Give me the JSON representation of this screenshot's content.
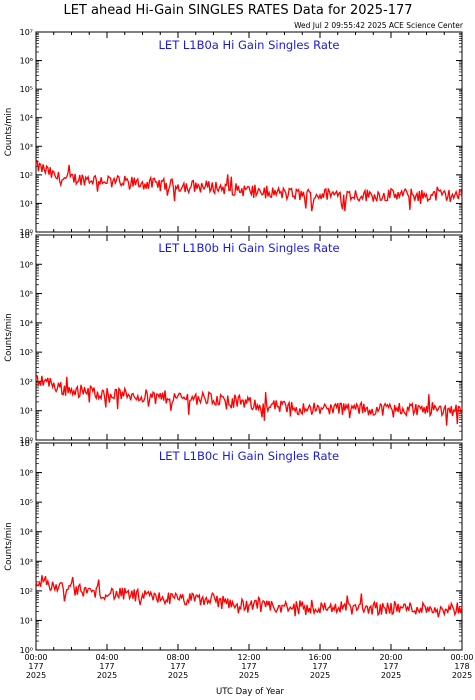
{
  "page": {
    "title": "LET ahead Hi-Gain SINGLES RATES Data for 2025-177",
    "timestamp": "Wed Jul  2 09:55:42 2025 ACE Science Center",
    "xlabel": "UTC Day of Year",
    "ylabel": "Counts/min",
    "series_color": "#ff0000",
    "label_color": "#1a1adc"
  },
  "chart_data": [
    {
      "type": "line",
      "title": "LET L1B0a Hi Gain Singles Rate",
      "ylabel": "Counts/min",
      "y_scale": "log",
      "ylim": [
        1,
        10000000
      ],
      "xlim": [
        0,
        24
      ],
      "x_unit": "hours UTC, day 177 of 2025",
      "y_tick_labels": [
        "10⁰",
        "10¹",
        "10²",
        "10³",
        "10⁴",
        "10⁵",
        "10⁶",
        "10⁷"
      ],
      "series": [
        {
          "x": [
            0,
            0.5,
            1,
            1.5,
            2,
            3,
            4,
            5,
            6,
            7,
            8,
            9,
            10,
            11,
            12,
            13,
            14,
            15,
            16,
            17,
            18,
            19,
            20,
            21,
            22,
            23,
            24
          ],
          "values": [
            200,
            150,
            90,
            70,
            75,
            70,
            65,
            55,
            50,
            45,
            42,
            40,
            38,
            32,
            28,
            25,
            22,
            20,
            20,
            21,
            20,
            19,
            20,
            20,
            19,
            19,
            19
          ]
        }
      ]
    },
    {
      "type": "line",
      "title": "LET L1B0b Hi Gain Singles Rate",
      "ylabel": "Counts/min",
      "y_scale": "log",
      "ylim": [
        1,
        10000000
      ],
      "xlim": [
        0,
        24
      ],
      "x_unit": "hours UTC, day 177 of 2025",
      "y_tick_labels": [
        "10⁰",
        "10¹",
        "10²",
        "10³",
        "10⁴",
        "10⁵",
        "10⁶",
        "10⁷"
      ],
      "series": [
        {
          "x": [
            0,
            0.5,
            1,
            1.5,
            2,
            3,
            4,
            5,
            6,
            7,
            8,
            9,
            10,
            11,
            12,
            13,
            14,
            15,
            16,
            17,
            18,
            19,
            20,
            21,
            22,
            23,
            24
          ],
          "values": [
            120,
            110,
            75,
            55,
            50,
            45,
            40,
            35,
            32,
            30,
            28,
            27,
            25,
            22,
            18,
            15,
            13,
            12,
            12,
            12,
            12,
            11,
            12,
            12,
            11,
            11,
            11
          ]
        }
      ]
    },
    {
      "type": "line",
      "title": "LET L1B0c Hi Gain Singles Rate",
      "ylabel": "Counts/min",
      "y_scale": "log",
      "ylim": [
        1,
        10000000
      ],
      "xlim": [
        0,
        24
      ],
      "x_unit": "hours UTC, day 177 of 2025",
      "y_tick_labels": [
        "10⁰",
        "10¹",
        "10²",
        "10³",
        "10⁴",
        "10⁵",
        "10⁶",
        "10⁷"
      ],
      "series": [
        {
          "x": [
            0,
            0.5,
            1,
            1.5,
            2,
            3,
            4,
            5,
            6,
            7,
            8,
            9,
            10,
            11,
            12,
            13,
            14,
            15,
            16,
            17,
            18,
            19,
            20,
            21,
            22,
            23,
            24
          ],
          "values": [
            230,
            200,
            150,
            120,
            110,
            95,
            85,
            75,
            65,
            58,
            52,
            50,
            48,
            40,
            30,
            28,
            27,
            27,
            27,
            27,
            26,
            26,
            27,
            26,
            26,
            26,
            25
          ]
        }
      ]
    }
  ],
  "x_ticks": [
    {
      "time": "00:00",
      "day": "177",
      "year": "2025"
    },
    {
      "time": "04:00",
      "day": "177",
      "year": "2025"
    },
    {
      "time": "08:00",
      "day": "177",
      "year": "2025"
    },
    {
      "time": "12:00",
      "day": "177",
      "year": "2025"
    },
    {
      "time": "16:00",
      "day": "177",
      "year": "2025"
    },
    {
      "time": "20:00",
      "day": "177",
      "year": "2025"
    },
    {
      "time": "00:00",
      "day": "178",
      "year": "2025"
    }
  ]
}
